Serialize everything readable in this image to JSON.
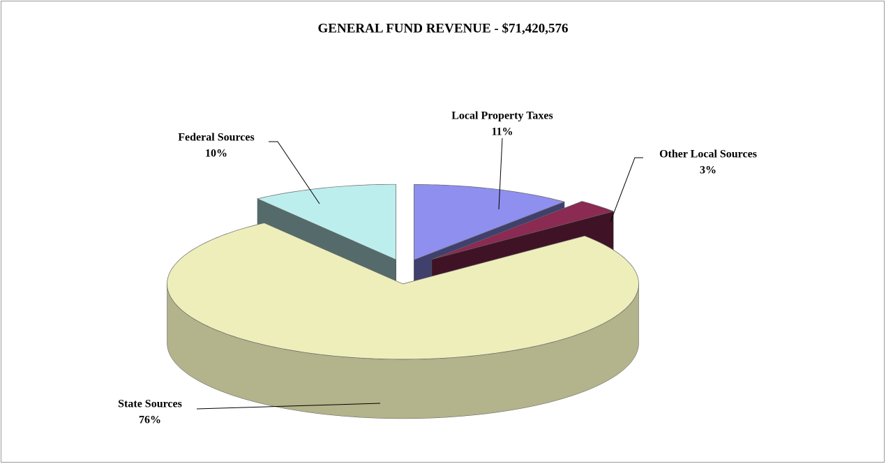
{
  "chart_data": {
    "type": "pie",
    "title": "GENERAL FUND REVENUE - $71,420,576",
    "categories": [
      "Local Property Taxes",
      "Other Local Sources",
      "State Sources",
      "Federal Sources"
    ],
    "values": [
      11,
      3,
      76,
      10
    ],
    "value_labels": [
      "11%",
      "3%",
      "76%",
      "10%"
    ],
    "colors": [
      "#8f8fef",
      "#8b2a52",
      "#eeeebb",
      "#bdeeee"
    ]
  }
}
